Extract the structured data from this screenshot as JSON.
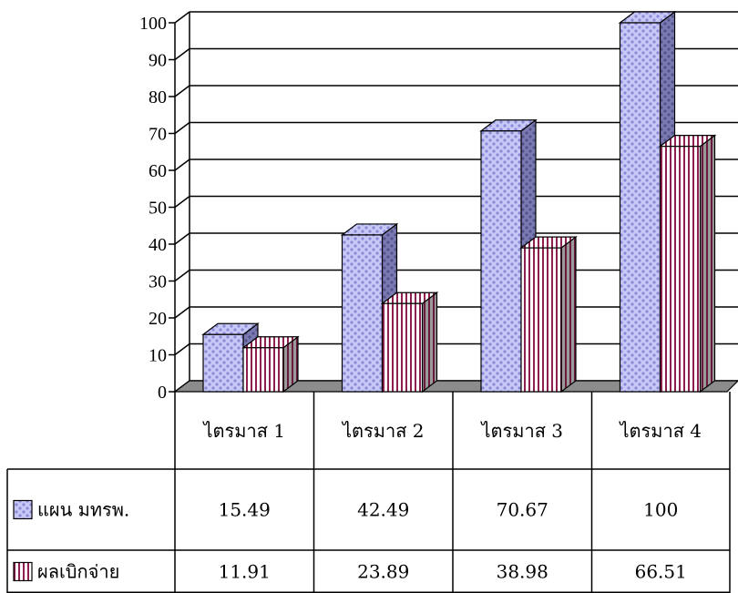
{
  "chart_data": {
    "type": "bar",
    "categories": [
      "ไตรมาส 1",
      "ไตรมาส 2",
      "ไตรมาส 3",
      "ไตรมาส 4"
    ],
    "series": [
      {
        "name": "แผน มทรพ.",
        "values": [
          15.49,
          42.49,
          70.67,
          100
        ],
        "value_labels": [
          "15.49",
          "42.49",
          "70.67",
          "100"
        ]
      },
      {
        "name": "ผลเบิกจ่าย",
        "values": [
          11.91,
          23.89,
          38.98,
          66.51
        ],
        "value_labels": [
          "11.91",
          "23.89",
          "38.98",
          "66.51"
        ]
      }
    ],
    "y_ticks": [
      "0",
      "10",
      "20",
      "30",
      "40",
      "50",
      "60",
      "70",
      "80",
      "90",
      "100"
    ],
    "ylim": [
      0,
      100
    ],
    "grid": true,
    "style": "3d-clustered-column-with-data-table",
    "legend": "data-table-left",
    "colors": {
      "series1_face": "#c8c8f6",
      "series1_dot": "#8a8ada",
      "series2_face": "#ffffff",
      "series2_stripe": "#8e2050",
      "floor": "#8c8c8c"
    }
  }
}
